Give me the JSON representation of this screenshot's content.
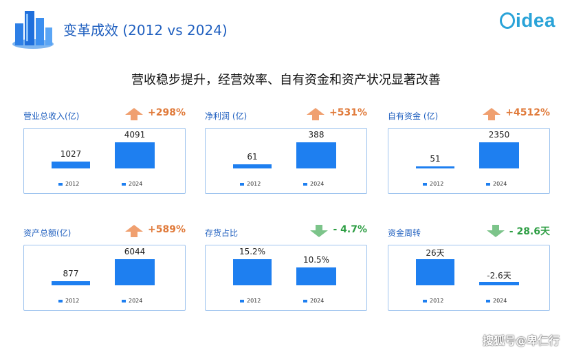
{
  "header": {
    "title": "变革成效 (2012 vs 2024)",
    "brand": "idea",
    "subtitle": "营收稳步提升，经营效率、自有资金和资产状况显著改善"
  },
  "watermark": "搜狐号@卑仁行",
  "colors": {
    "bar": "#1e7ff0",
    "up": "#e07a3a",
    "down": "#2e9e44",
    "title": "#1f5fbf"
  },
  "chart_data": [
    {
      "type": "bar",
      "title": "营业总收入(亿)",
      "change": "+298%",
      "direction": "up",
      "categories": [
        "2012",
        "2024"
      ],
      "values": [
        1027,
        4091
      ],
      "labels": [
        "1027",
        "4091"
      ]
    },
    {
      "type": "bar",
      "title": "净利润 (亿)",
      "change": "+531%",
      "direction": "up",
      "categories": [
        "2012",
        "2024"
      ],
      "values": [
        61,
        388
      ],
      "labels": [
        "61",
        "388"
      ]
    },
    {
      "type": "bar",
      "title": "自有资金 (亿)",
      "change": "+4512%",
      "direction": "up",
      "categories": [
        "2012",
        "2024"
      ],
      "values": [
        51,
        2350
      ],
      "labels": [
        "51",
        "2350"
      ]
    },
    {
      "type": "bar",
      "title": "资产总额(亿)",
      "change": "+589%",
      "direction": "up",
      "categories": [
        "2012",
        "2024"
      ],
      "values": [
        877,
        6044
      ],
      "labels": [
        "877",
        "6044"
      ]
    },
    {
      "type": "bar",
      "title": "存货占比",
      "change": "- 4.7%",
      "direction": "down",
      "categories": [
        "2012",
        "2024"
      ],
      "values": [
        15.2,
        10.5
      ],
      "labels": [
        "15.2%",
        "10.5%"
      ]
    },
    {
      "type": "bar",
      "title": "资金周转",
      "change": "- 28.6天",
      "direction": "down",
      "categories": [
        "2012",
        "2024"
      ],
      "values": [
        26,
        -2.6
      ],
      "labels": [
        "26天",
        "-2.6天"
      ]
    }
  ]
}
